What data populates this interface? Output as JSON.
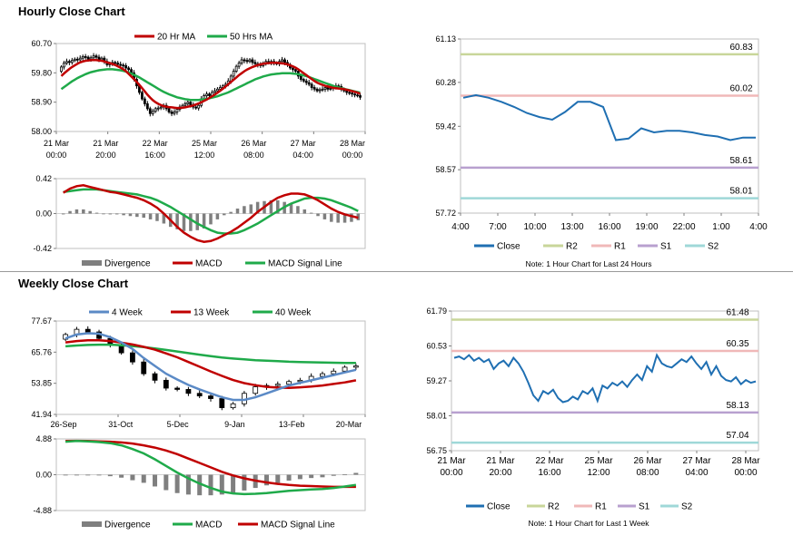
{
  "titles": {
    "hourly": "Hourly Close Chart",
    "weekly": "Weekly Close Chart"
  },
  "colors": {
    "up": "#ffffff",
    "candle": "#000000",
    "ma_short": "#c00000",
    "ma_long": "#1faa4a",
    "divergence": "#7f7f7f",
    "macd_red": "#c00000",
    "macd_green": "#1faa4a",
    "close": "#1f6fb2",
    "r2": "#c8d69a",
    "r1": "#f0b8b8",
    "s1": "#b8a0cf",
    "s2": "#9fd8d8",
    "wk4": "#5b8ac6"
  },
  "chart_data": [
    {
      "id": "hourly_price",
      "type": "candlestick",
      "legend": [
        "20 Hr MA",
        "50 Hrs MA"
      ],
      "y_ticks": [
        "60.70",
        "59.80",
        "58.90",
        "58.00"
      ],
      "ylim": [
        58.0,
        60.7
      ],
      "x_ticks": [
        [
          "21 Mar",
          "00:00"
        ],
        [
          "21 Mar",
          "20:00"
        ],
        [
          "22 Mar",
          "16:00"
        ],
        [
          "25 Mar",
          "12:00"
        ],
        [
          "26 Mar",
          "08:00"
        ],
        [
          "27 Mar",
          "04:00"
        ],
        [
          "28 Mar",
          "00:00"
        ]
      ],
      "n": 112,
      "close": [
        59.98,
        60.1,
        60.15,
        60.12,
        60.18,
        60.22,
        60.2,
        60.25,
        60.3,
        60.28,
        60.22,
        60.26,
        60.32,
        60.28,
        60.2,
        60.25,
        60.15,
        60.05,
        60.08,
        60.12,
        60.1,
        60.06,
        60.04,
        60.02,
        59.95,
        59.9,
        59.8,
        59.6,
        59.4,
        59.2,
        59.0,
        58.85,
        58.7,
        58.55,
        58.62,
        58.7,
        58.72,
        58.75,
        58.8,
        58.7,
        58.6,
        58.55,
        58.6,
        58.68,
        58.75,
        58.8,
        58.85,
        58.9,
        58.82,
        58.75,
        58.72,
        58.8,
        59.0,
        59.1,
        59.15,
        59.1,
        59.2,
        59.25,
        59.3,
        59.35,
        59.4,
        59.45,
        59.55,
        59.7,
        59.85,
        60.0,
        60.1,
        60.2,
        60.18,
        60.15,
        60.2,
        60.12,
        60.08,
        60.05,
        60.02,
        60.1,
        60.15,
        60.12,
        60.15,
        60.1,
        60.08,
        60.15,
        60.2,
        60.12,
        60.05,
        59.95,
        59.9,
        59.85,
        59.7,
        59.6,
        59.55,
        59.5,
        59.45,
        59.35,
        59.3,
        59.25,
        59.28,
        59.3,
        59.35,
        59.3,
        59.32,
        59.35,
        59.4,
        59.38,
        59.3,
        59.25,
        59.2,
        59.18,
        59.15,
        59.12,
        59.1,
        59.05
      ],
      "ma20": [
        59.7,
        59.78,
        59.85,
        59.92,
        59.98,
        60.03,
        60.08,
        60.12,
        60.15,
        60.17,
        60.18,
        60.19,
        60.19,
        60.19,
        60.18,
        60.17,
        60.15,
        60.12,
        60.1,
        60.07,
        60.04,
        60.0,
        59.96,
        59.91,
        59.85,
        59.77,
        59.69,
        59.61,
        59.52,
        59.43,
        59.33,
        59.23,
        59.13,
        59.04,
        58.96,
        58.9,
        58.85,
        58.81,
        58.78,
        58.76,
        58.75,
        58.74,
        58.73,
        58.72,
        58.72,
        58.73,
        58.74,
        58.76,
        58.78,
        58.8,
        58.83,
        58.86,
        58.9,
        58.94,
        58.98,
        59.03,
        59.08,
        59.13,
        59.19,
        59.25,
        59.31,
        59.38,
        59.45,
        59.52,
        59.59,
        59.66,
        59.73,
        59.79,
        59.85,
        59.9,
        59.94,
        59.98,
        60.01,
        60.04,
        60.06,
        60.08,
        60.09,
        60.1,
        60.11,
        60.11,
        60.11,
        60.1,
        60.09,
        60.08,
        60.06,
        60.03,
        60.0,
        59.96,
        59.91,
        59.85,
        59.79,
        59.73,
        59.67,
        59.61,
        59.55,
        59.5,
        59.46,
        59.43,
        59.4,
        59.38,
        59.36,
        59.34,
        59.33,
        59.32,
        59.31,
        59.3,
        59.28,
        59.26,
        59.24,
        59.22,
        59.19,
        59.16
      ],
      "ma50": [
        59.3,
        59.36,
        59.42,
        59.48,
        59.54,
        59.59,
        59.64,
        59.68,
        59.72,
        59.76,
        59.79,
        59.82,
        59.84,
        59.86,
        59.88,
        59.89,
        59.9,
        59.91,
        59.91,
        59.91,
        59.9,
        59.89,
        59.88,
        59.86,
        59.84,
        59.81,
        59.78,
        59.74,
        59.7,
        59.66,
        59.61,
        59.56,
        59.51,
        59.46,
        59.41,
        59.36,
        59.31,
        59.26,
        59.22,
        59.18,
        59.14,
        59.11,
        59.08,
        59.05,
        59.03,
        59.01,
        58.99,
        58.98,
        58.97,
        58.97,
        58.97,
        58.97,
        58.98,
        58.99,
        59.0,
        59.02,
        59.04,
        59.06,
        59.08,
        59.11,
        59.14,
        59.17,
        59.2,
        59.24,
        59.28,
        59.32,
        59.36,
        59.4,
        59.44,
        59.48,
        59.52,
        59.56,
        59.6,
        59.63,
        59.66,
        59.69,
        59.71,
        59.73,
        59.75,
        59.76,
        59.77,
        59.78,
        59.79,
        59.79,
        59.79,
        59.79,
        59.78,
        59.77,
        59.76,
        59.74,
        59.72,
        59.7,
        59.67,
        59.64,
        59.61,
        59.58,
        59.55,
        59.52,
        59.49,
        59.46,
        59.43,
        59.4,
        59.37,
        59.35,
        59.33,
        59.31,
        59.29,
        59.27,
        59.25,
        59.23,
        59.21,
        59.19
      ]
    },
    {
      "id": "hourly_macd",
      "type": "line+bar",
      "legend": [
        "Divergence",
        "MACD",
        "MACD Signal Line"
      ],
      "y_ticks": [
        "0.42",
        "0.00",
        "-0.42"
      ],
      "ylim": [
        -0.42,
        0.42
      ],
      "macd": [
        0.25,
        0.3,
        0.33,
        0.34,
        0.32,
        0.3,
        0.28,
        0.26,
        0.25,
        0.23,
        0.21,
        0.19,
        0.16,
        0.12,
        0.07,
        0.0,
        -0.08,
        -0.16,
        -0.23,
        -0.28,
        -0.32,
        -0.34,
        -0.33,
        -0.3,
        -0.26,
        -0.22,
        -0.17,
        -0.11,
        -0.05,
        0.02,
        0.08,
        0.14,
        0.19,
        0.22,
        0.24,
        0.24,
        0.23,
        0.2,
        0.16,
        0.11,
        0.06,
        0.02,
        -0.01,
        -0.03,
        -0.05
      ],
      "signal": [
        0.26,
        0.27,
        0.28,
        0.29,
        0.29,
        0.29,
        0.28,
        0.27,
        0.26,
        0.25,
        0.24,
        0.23,
        0.21,
        0.19,
        0.16,
        0.12,
        0.08,
        0.03,
        -0.02,
        -0.07,
        -0.12,
        -0.16,
        -0.2,
        -0.23,
        -0.24,
        -0.24,
        -0.23,
        -0.2,
        -0.16,
        -0.12,
        -0.07,
        -0.02,
        0.03,
        0.08,
        0.12,
        0.15,
        0.18,
        0.19,
        0.19,
        0.18,
        0.16,
        0.13,
        0.1,
        0.07,
        0.03
      ],
      "divergence": [
        -0.01,
        0.03,
        0.05,
        0.05,
        0.03,
        0.01,
        0.0,
        -0.01,
        -0.01,
        -0.02,
        -0.03,
        -0.04,
        -0.05,
        -0.07,
        -0.09,
        -0.12,
        -0.16,
        -0.19,
        -0.21,
        -0.21,
        -0.2,
        -0.18,
        -0.13,
        -0.07,
        -0.02,
        0.02,
        0.06,
        0.09,
        0.11,
        0.14,
        0.15,
        0.16,
        0.16,
        0.14,
        0.12,
        0.09,
        0.05,
        0.01,
        -0.03,
        -0.07,
        -0.1,
        -0.11,
        -0.11,
        -0.1,
        -0.08
      ]
    },
    {
      "id": "hourly_close_24h",
      "type": "line",
      "y_ticks": [
        "61.13",
        "60.28",
        "59.42",
        "58.57",
        "57.72"
      ],
      "ylim": [
        57.72,
        61.13
      ],
      "x_ticks": [
        "4:00",
        "7:00",
        "10:00",
        "13:00",
        "16:00",
        "19:00",
        "22:00",
        "1:00",
        "4:00"
      ],
      "close": [
        59.98,
        60.03,
        59.98,
        59.9,
        59.8,
        59.68,
        59.6,
        59.55,
        59.7,
        59.9,
        59.9,
        59.8,
        59.15,
        59.18,
        59.38,
        59.3,
        59.33,
        59.33,
        59.3,
        59.25,
        59.22,
        59.15,
        59.2,
        59.2
      ],
      "levels": [
        {
          "name": "R2",
          "value": 60.83
        },
        {
          "name": "R1",
          "value": 60.02
        },
        {
          "name": "S1",
          "value": 58.61
        },
        {
          "name": "S2",
          "value": 58.01
        }
      ],
      "level_labels": [
        "60.83",
        "60.02",
        "58.61",
        "58.01"
      ],
      "legend": [
        "Close",
        "R2",
        "R1",
        "S1",
        "S2"
      ],
      "note": "Note: 1 Hour Chart for Last 24 Hours"
    },
    {
      "id": "weekly_price",
      "type": "candlestick",
      "legend": [
        "4 Week",
        "13 Week",
        "40 Week"
      ],
      "y_ticks": [
        "77.67",
        "65.76",
        "53.85",
        "41.94"
      ],
      "ylim": [
        41.94,
        77.67
      ],
      "x_ticks": [
        "26-Sep",
        "31-Oct",
        "5-Dec",
        "9-Jan",
        "13-Feb",
        "20-Mar"
      ],
      "n": 27,
      "close": [
        72.5,
        74.5,
        73.5,
        71.0,
        68.5,
        65.5,
        62.0,
        57.5,
        55.0,
        52.0,
        51.5,
        50.0,
        49.0,
        48.0,
        44.5,
        46.0,
        50.0,
        52.5,
        53.0,
        53.5,
        54.5,
        55.0,
        56.5,
        57.5,
        58.5,
        60.0,
        60.5
      ],
      "w4": [
        71,
        72.5,
        73,
        72.8,
        71.5,
        69.5,
        67,
        63.5,
        60.5,
        57.5,
        55.3,
        53.2,
        51.5,
        50,
        48.5,
        47.5,
        47.5,
        48.5,
        50,
        51.5,
        53,
        54,
        55,
        56,
        57,
        58,
        59
      ],
      "w13": [
        69.5,
        70,
        70.3,
        70.3,
        70,
        69.4,
        68.7,
        67.8,
        66.7,
        65.3,
        63.8,
        62,
        60.2,
        58.4,
        56.7,
        55.1,
        53.9,
        53.1,
        52.5,
        52.2,
        52.1,
        52.3,
        52.6,
        53,
        53.6,
        54.2,
        55
      ],
      "w40": [
        68,
        68.3,
        68.5,
        68.6,
        68.6,
        68.4,
        68.1,
        67.7,
        67.2,
        66.6,
        66,
        65.4,
        64.8,
        64.2,
        63.7,
        63.3,
        63,
        62.7,
        62.5,
        62.3,
        62.1,
        62,
        61.9,
        61.8,
        61.7,
        61.6,
        61.6
      ]
    },
    {
      "id": "weekly_macd",
      "type": "line+bar",
      "legend": [
        "Divergence",
        "MACD",
        "MACD Signal Line"
      ],
      "y_ticks": [
        "4.88",
        "0.00",
        "-4.88"
      ],
      "ylim": [
        -4.88,
        4.88
      ],
      "macd": [
        4.5,
        4.6,
        4.55,
        4.45,
        4.3,
        4.0,
        3.5,
        2.9,
        2.1,
        1.2,
        0.3,
        -0.5,
        -1.2,
        -1.8,
        -2.3,
        -2.55,
        -2.65,
        -2.6,
        -2.5,
        -2.35,
        -2.2,
        -2.1,
        -2.0,
        -1.95,
        -1.8,
        -1.6,
        -1.4
      ],
      "signal": [
        4.6,
        4.62,
        4.6,
        4.55,
        4.5,
        4.4,
        4.25,
        4.0,
        3.7,
        3.3,
        2.8,
        2.2,
        1.6,
        1.0,
        0.4,
        -0.1,
        -0.5,
        -0.8,
        -1.05,
        -1.25,
        -1.4,
        -1.5,
        -1.55,
        -1.6,
        -1.65,
        -1.65,
        -1.65
      ],
      "divergence": [
        -0.1,
        -0.02,
        -0.05,
        -0.1,
        -0.2,
        -0.4,
        -0.75,
        -1.1,
        -1.6,
        -2.1,
        -2.5,
        -2.7,
        -2.8,
        -2.8,
        -2.7,
        -2.45,
        -2.15,
        -1.8,
        -1.45,
        -1.1,
        -0.8,
        -0.6,
        -0.45,
        -0.35,
        -0.15,
        0.05,
        0.25
      ]
    },
    {
      "id": "weekly_close_1w",
      "type": "line",
      "y_ticks": [
        "61.79",
        "60.53",
        "59.27",
        "58.01",
        "56.75"
      ],
      "ylim": [
        56.75,
        61.79
      ],
      "x_ticks": [
        [
          "21 Mar",
          "00:00"
        ],
        [
          "21 Mar",
          "20:00"
        ],
        [
          "22 Mar",
          "16:00"
        ],
        [
          "25 Mar",
          "12:00"
        ],
        [
          "26 Mar",
          "08:00"
        ],
        [
          "27 Mar",
          "04:00"
        ],
        [
          "28 Mar",
          "00:00"
        ]
      ],
      "close": [
        60.1,
        60.15,
        60.05,
        60.2,
        60.0,
        60.1,
        59.95,
        60.05,
        59.7,
        59.9,
        60.0,
        59.8,
        60.1,
        59.9,
        59.6,
        59.2,
        58.75,
        58.55,
        58.9,
        58.8,
        58.95,
        58.65,
        58.5,
        58.55,
        58.7,
        58.6,
        58.9,
        58.8,
        59.0,
        58.55,
        59.1,
        59.0,
        59.2,
        59.1,
        59.25,
        59.05,
        59.3,
        59.5,
        59.3,
        59.8,
        59.6,
        60.2,
        59.9,
        59.8,
        59.75,
        59.9,
        60.05,
        59.95,
        60.15,
        59.9,
        59.7,
        59.95,
        59.5,
        59.8,
        59.45,
        59.3,
        59.25,
        59.4,
        59.15,
        59.3,
        59.2,
        59.25
      ],
      "levels": [
        {
          "name": "R2",
          "value": 61.48
        },
        {
          "name": "R1",
          "value": 60.35
        },
        {
          "name": "S1",
          "value": 58.13
        },
        {
          "name": "S2",
          "value": 57.04
        }
      ],
      "level_labels": [
        "61.48",
        "60.35",
        "58.13",
        "57.04"
      ],
      "legend": [
        "Close",
        "R2",
        "R1",
        "S1",
        "S2"
      ],
      "note": "Note: 1 Hour Chart for Last 1 Week"
    }
  ]
}
